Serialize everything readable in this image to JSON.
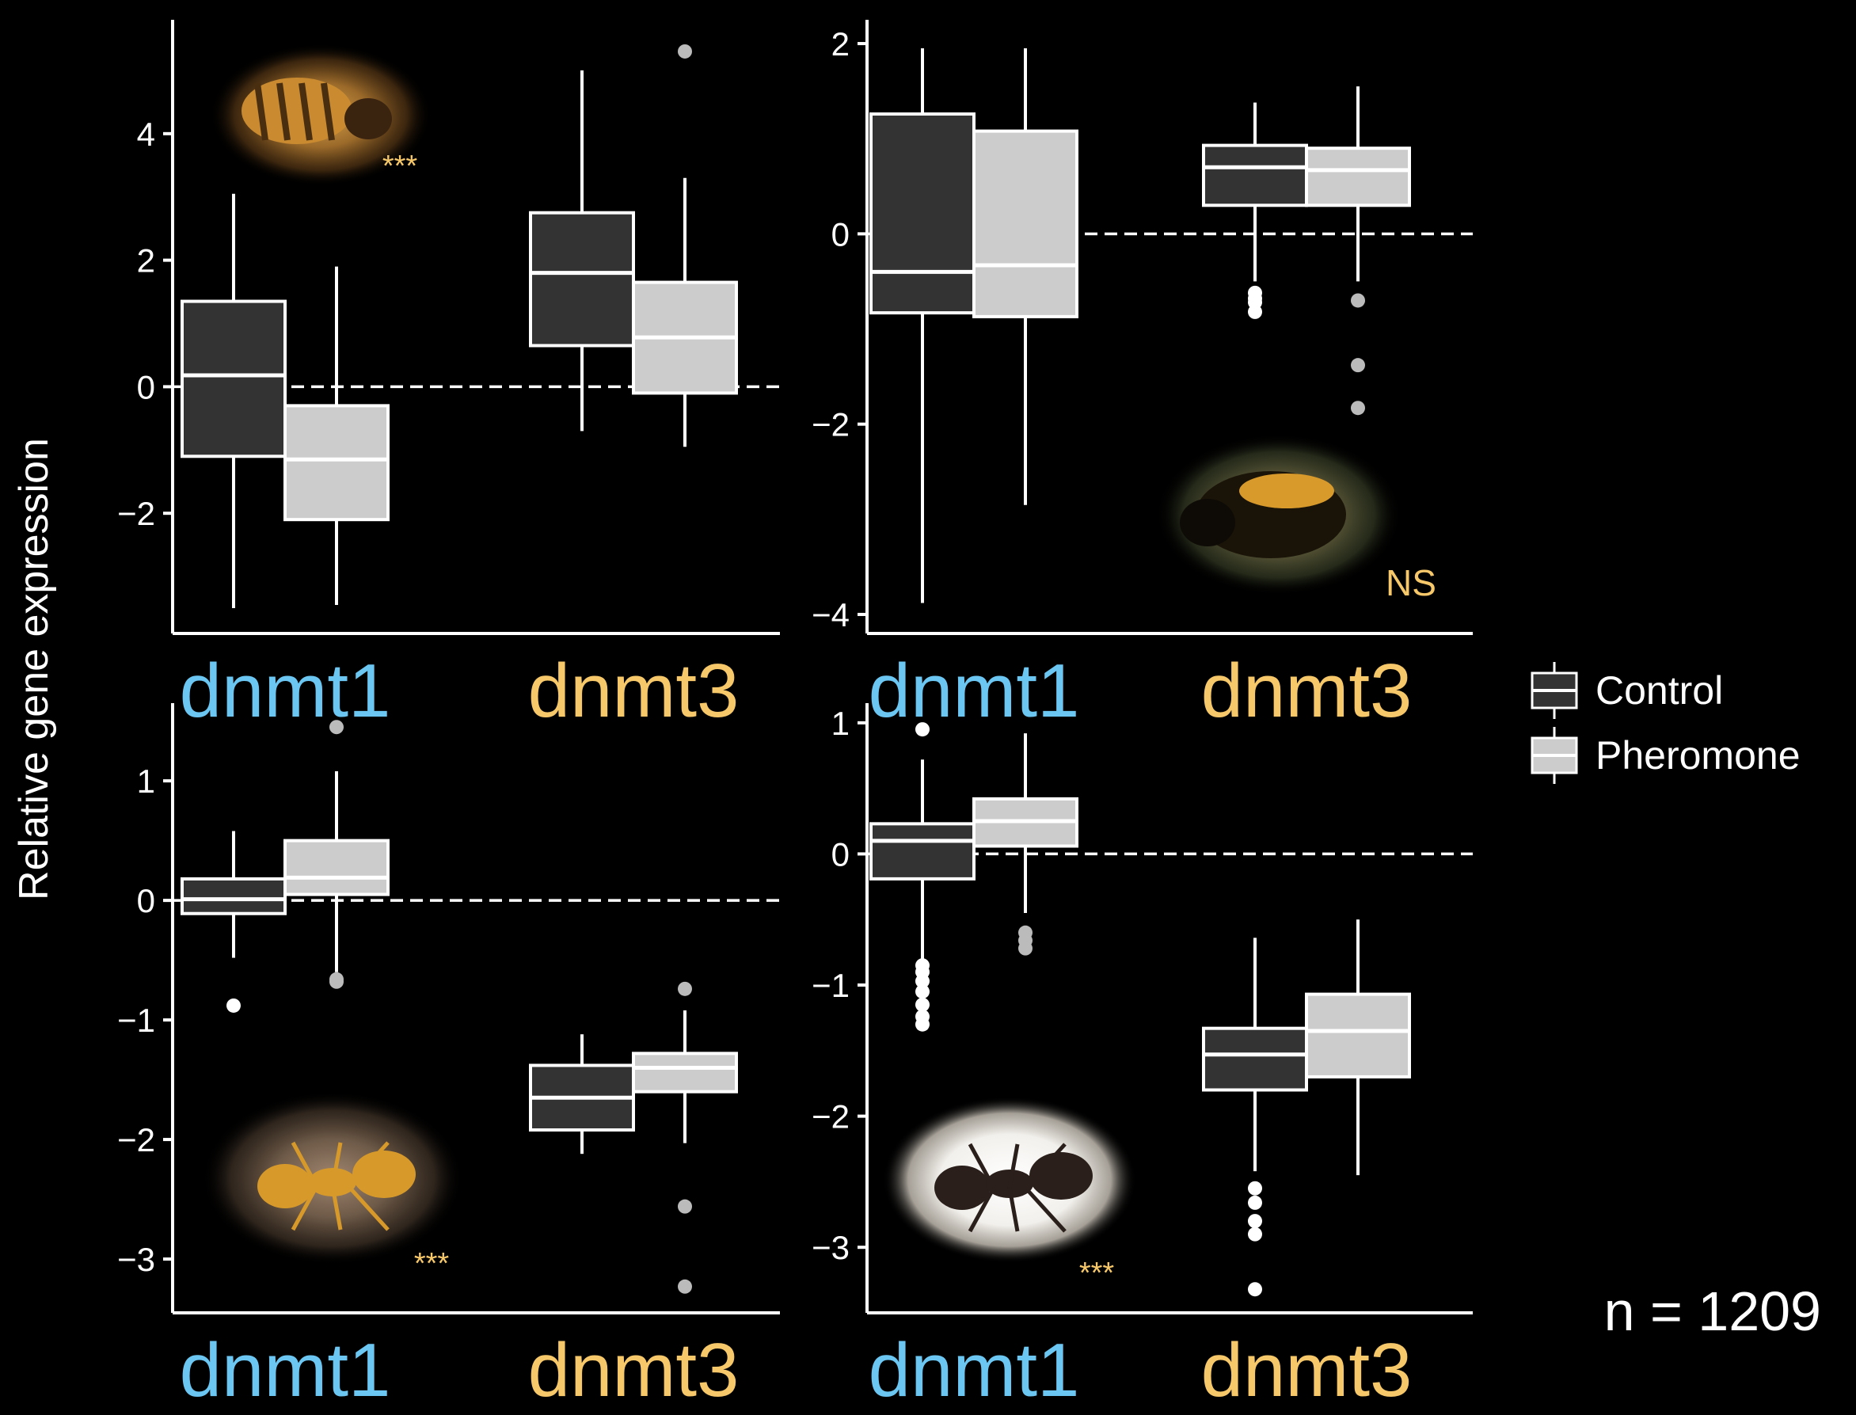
{
  "chart_data": {
    "type": "box",
    "ylabel": "Relative gene expression",
    "categories": [
      "dnmt1",
      "dnmt3"
    ],
    "category_colors": {
      "dnmt1": "#6cc6f2",
      "dnmt3": "#f6c86a"
    },
    "legend": {
      "position": "right",
      "entries": [
        {
          "label": "Control",
          "fill": "#333333"
        },
        {
          "label": "Pheromone",
          "fill": "#cccccc"
        }
      ]
    },
    "reference_line": 0,
    "footnote": "n = 1209",
    "colors": {
      "background": "#000000",
      "axis": "#ffffff",
      "control": "#333333",
      "pheromone": "#cccccc",
      "significance": "#f6c86a",
      "outlier_control": "#ffffff",
      "outlier_pheromone": "#bbbbbb"
    },
    "panels": [
      {
        "id": "honeybee",
        "image_subject": "honeybee",
        "significance": "***",
        "ylim": [
          -3.9,
          5.8
        ],
        "yticks": [
          -2,
          0,
          2,
          4
        ],
        "ytick_labels": [
          "−2",
          "0",
          "2",
          "4"
        ],
        "boxes": [
          {
            "gene": "dnmt1",
            "group": "Control",
            "min": -3.5,
            "q1": -1.1,
            "median": 0.18,
            "q3": 1.35,
            "max": 3.05,
            "outliers": []
          },
          {
            "gene": "dnmt1",
            "group": "Pheromone",
            "min": -3.45,
            "q1": -2.1,
            "median": -1.15,
            "q3": -0.3,
            "max": 1.9,
            "outliers": []
          },
          {
            "gene": "dnmt3",
            "group": "Control",
            "min": -0.7,
            "q1": 0.65,
            "median": 1.8,
            "q3": 2.75,
            "max": 5.0,
            "outliers": []
          },
          {
            "gene": "dnmt3",
            "group": "Pheromone",
            "min": -0.95,
            "q1": -0.1,
            "median": 0.78,
            "q3": 1.65,
            "max": 3.3,
            "outliers": [
              5.3
            ]
          }
        ]
      },
      {
        "id": "bumblebee",
        "image_subject": "bumblebee",
        "significance": "NS",
        "ylim": [
          -4.2,
          2.25
        ],
        "yticks": [
          -4,
          -2,
          0,
          2
        ],
        "ytick_labels": [
          "−4",
          "−2",
          "0",
          "2"
        ],
        "boxes": [
          {
            "gene": "dnmt1",
            "group": "Control",
            "min": -3.88,
            "q1": -0.83,
            "median": -0.4,
            "q3": 1.26,
            "max": 1.95,
            "outliers": []
          },
          {
            "gene": "dnmt1",
            "group": "Pheromone",
            "min": -2.85,
            "q1": -0.87,
            "median": -0.33,
            "q3": 1.08,
            "max": 1.95,
            "outliers": []
          },
          {
            "gene": "dnmt3",
            "group": "Control",
            "min": -0.5,
            "q1": 0.3,
            "median": 0.7,
            "q3": 0.93,
            "max": 1.38,
            "outliers": [
              -0.62,
              -0.68,
              -0.72,
              -0.82
            ]
          },
          {
            "gene": "dnmt3",
            "group": "Pheromone",
            "min": -0.5,
            "q1": 0.3,
            "median": 0.67,
            "q3": 0.9,
            "max": 1.55,
            "outliers": [
              -0.7,
              -1.38,
              -1.83
            ]
          }
        ]
      },
      {
        "id": "fire-ant",
        "image_subject": "fire ant",
        "significance": "***",
        "ylim": [
          -3.45,
          1.65
        ],
        "yticks": [
          -3,
          -2,
          -1,
          0,
          1
        ],
        "ytick_labels": [
          "−3",
          "−2",
          "−1",
          "0",
          "1"
        ],
        "boxes": [
          {
            "gene": "dnmt1",
            "group": "Control",
            "min": -0.48,
            "q1": -0.11,
            "median": 0.01,
            "q3": 0.18,
            "max": 0.58,
            "outliers": [
              -0.88
            ]
          },
          {
            "gene": "dnmt1",
            "group": "Pheromone",
            "min": -0.6,
            "q1": 0.05,
            "median": 0.19,
            "q3": 0.5,
            "max": 1.08,
            "outliers": [
              1.45,
              -0.66,
              -0.68
            ]
          },
          {
            "gene": "dnmt3",
            "group": "Control",
            "min": -2.12,
            "q1": -1.92,
            "median": -1.65,
            "q3": -1.38,
            "max": -1.12,
            "outliers": []
          },
          {
            "gene": "dnmt3",
            "group": "Pheromone",
            "min": -2.03,
            "q1": -1.6,
            "median": -1.4,
            "q3": -1.28,
            "max": -0.92,
            "outliers": [
              -0.74,
              -2.56,
              -3.23
            ]
          }
        ]
      },
      {
        "id": "black-ant",
        "image_subject": "black ant",
        "significance": "***",
        "ylim": [
          -3.5,
          1.15
        ],
        "yticks": [
          -3,
          -2,
          -1,
          0,
          1
        ],
        "ytick_labels": [
          "−3",
          "−2",
          "−1",
          "0",
          "1"
        ],
        "boxes": [
          {
            "gene": "dnmt1",
            "group": "Control",
            "min": -0.8,
            "q1": -0.19,
            "median": 0.1,
            "q3": 0.23,
            "max": 0.72,
            "outliers": [
              0.95,
              -0.85,
              -0.9,
              -0.97,
              -1.05,
              -1.15,
              -1.24,
              -1.3
            ]
          },
          {
            "gene": "dnmt1",
            "group": "Pheromone",
            "min": -0.45,
            "q1": 0.06,
            "median": 0.25,
            "q3": 0.42,
            "max": 0.92,
            "outliers": [
              -0.6,
              -0.66,
              -0.72
            ]
          },
          {
            "gene": "dnmt3",
            "group": "Control",
            "min": -2.42,
            "q1": -1.8,
            "median": -1.53,
            "q3": -1.33,
            "max": -0.64,
            "outliers": [
              -2.55,
              -2.66,
              -2.8,
              -2.9,
              -3.32
            ]
          },
          {
            "gene": "dnmt3",
            "group": "Pheromone",
            "min": -2.45,
            "q1": -1.7,
            "median": -1.35,
            "q3": -1.07,
            "max": -0.5,
            "outliers": []
          }
        ]
      }
    ]
  }
}
